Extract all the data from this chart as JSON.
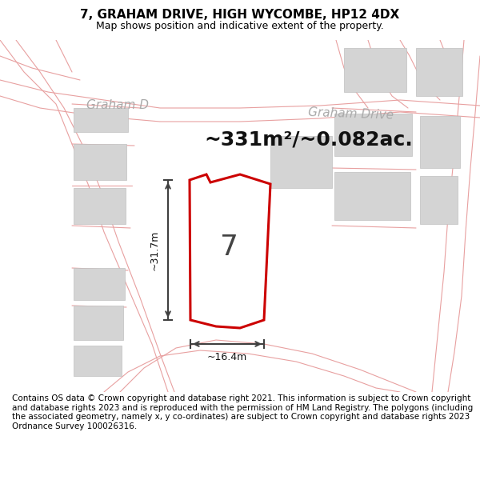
{
  "title": "7, GRAHAM DRIVE, HIGH WYCOMBE, HP12 4DX",
  "subtitle": "Map shows position and indicative extent of the property.",
  "footer": "Contains OS data © Crown copyright and database right 2021. This information is subject to Crown copyright and database rights 2023 and is reproduced with the permission of HM Land Registry. The polygons (including the associated geometry, namely x, y co-ordinates) are subject to Crown copyright and database rights 2023 Ordnance Survey 100026316.",
  "area_text": "~331m²/~0.082ac.",
  "label_7": "7",
  "dim_height": "~31.7m",
  "dim_width": "~16.4m",
  "road_label1": "Graham D",
  "road_label2": "Graham Drive",
  "plot_fill": "#ffffff",
  "plot_edge": "#cc0000",
  "building_fill": "#d4d4d4",
  "building_edge": "#c0c0c0",
  "boundary_color": "#e8a0a0",
  "map_bg": "#eeecec",
  "dim_color": "#404040",
  "road_name_color": "#aaaaaa",
  "title_fontsize": 11,
  "subtitle_fontsize": 9,
  "footer_fontsize": 7.5,
  "area_fontsize": 18,
  "label_fontsize": 26,
  "dim_fontsize": 9,
  "road_fontsize": 11
}
